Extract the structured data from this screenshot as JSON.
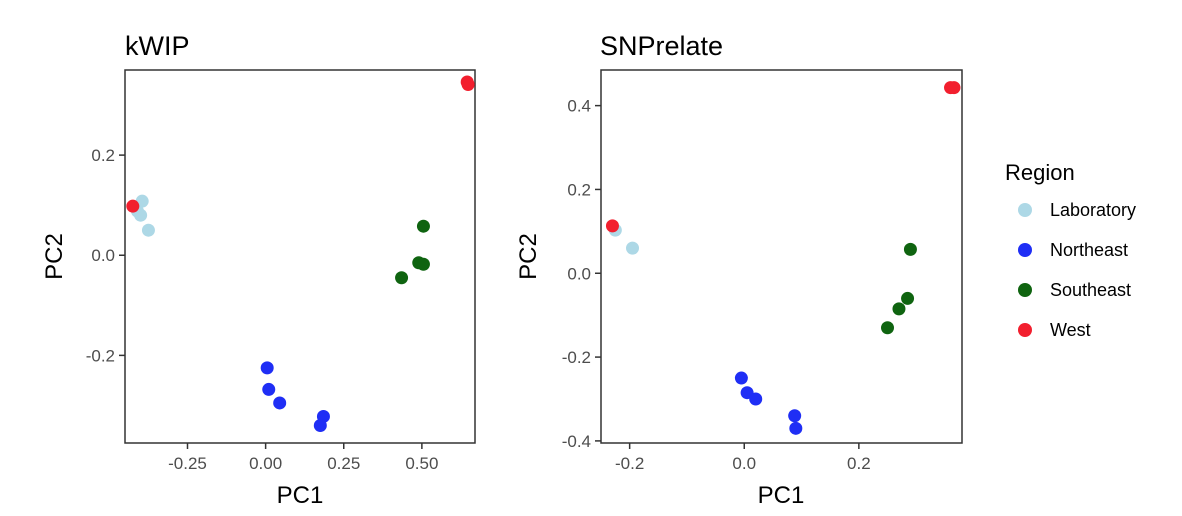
{
  "chart_data": [
    {
      "type": "scatter",
      "title": "kWIP",
      "xlabel": "PC1",
      "ylabel": "PC2",
      "xlim": [
        -0.45,
        0.67
      ],
      "ylim": [
        -0.375,
        0.37
      ],
      "xticks": [
        -0.25,
        0.0,
        0.25,
        0.5
      ],
      "xtick_labels": [
        "-0.25",
        "0.00",
        "0.25",
        "0.50"
      ],
      "yticks": [
        -0.2,
        0.0,
        0.2
      ],
      "ytick_labels": [
        "-0.2",
        "0.0",
        "0.2"
      ],
      "grid": false,
      "series": [
        {
          "name": "Laboratory",
          "x": [
            -0.395,
            -0.41,
            -0.4,
            -0.375
          ],
          "y": [
            0.108,
            0.088,
            0.08,
            0.05
          ]
        },
        {
          "name": "Northeast",
          "x": [
            0.005,
            0.01,
            0.045,
            0.185,
            0.175
          ],
          "y": [
            -0.225,
            -0.268,
            -0.295,
            -0.322,
            -0.34
          ]
        },
        {
          "name": "Southeast",
          "x": [
            0.505,
            0.49,
            0.505,
            0.435
          ],
          "y": [
            0.058,
            -0.015,
            -0.018,
            -0.045
          ]
        },
        {
          "name": "West",
          "x": [
            -0.425,
            0.645,
            0.648
          ],
          "y": [
            0.098,
            0.346,
            0.341
          ]
        }
      ]
    },
    {
      "type": "scatter",
      "title": "SNPrelate",
      "xlabel": "PC1",
      "ylabel": "PC2",
      "xlim": [
        -0.25,
        0.38
      ],
      "ylim": [
        -0.405,
        0.485
      ],
      "xticks": [
        -0.2,
        0.0,
        0.2
      ],
      "xtick_labels": [
        "-0.2",
        "0.0",
        "0.2"
      ],
      "yticks": [
        -0.4,
        -0.2,
        0.0,
        0.2,
        0.4
      ],
      "ytick_labels": [
        "-0.4",
        "-0.2",
        "0.0",
        "0.2",
        "0.4"
      ],
      "grid": false,
      "series": [
        {
          "name": "Laboratory",
          "x": [
            -0.225,
            -0.195
          ],
          "y": [
            0.103,
            0.06
          ]
        },
        {
          "name": "Northeast",
          "x": [
            -0.005,
            0.005,
            0.02,
            0.088,
            0.09
          ],
          "y": [
            -0.25,
            -0.285,
            -0.3,
            -0.34,
            -0.37
          ]
        },
        {
          "name": "Southeast",
          "x": [
            0.29,
            0.285,
            0.27,
            0.25
          ],
          "y": [
            0.057,
            -0.06,
            -0.085,
            -0.13
          ]
        },
        {
          "name": "West",
          "x": [
            -0.23,
            0.36,
            0.366
          ],
          "y": [
            0.113,
            0.443,
            0.443
          ]
        }
      ]
    }
  ],
  "legend": {
    "title": "Region",
    "placement": "right",
    "items": [
      {
        "label": "Laboratory",
        "color": "#add8e6"
      },
      {
        "label": "Northeast",
        "color": "#1f2ef5"
      },
      {
        "label": "Southeast",
        "color": "#0f6410"
      },
      {
        "label": "West",
        "color": "#f21f2e"
      }
    ]
  }
}
